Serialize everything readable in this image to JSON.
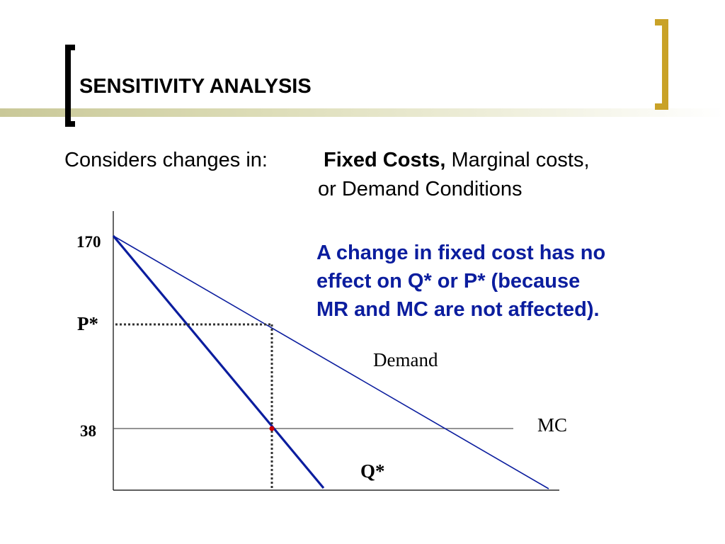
{
  "slide": {
    "title": "SENSITIVITY ANALYSIS",
    "subtitle_lead": "Considers changes in:",
    "subtitle_bold": "Fixed Costs,",
    "subtitle_rest": " Marginal costs,",
    "subtitle_line2": "or Demand Conditions",
    "accent_colors": {
      "title_band": "#c9c898",
      "right_bracket": "#c9a227",
      "left_bracket": "#000000"
    }
  },
  "note": {
    "lines": [
      "A change in fixed cost has no",
      "effect on Q* or P* (because",
      "MR and MC are not affected)."
    ],
    "color": "#0b1d9e"
  },
  "diagram": {
    "y_tick_170": "170",
    "y_tick_pstar": "P*",
    "y_tick_38": "38",
    "demand_label": "Demand",
    "mc_label": "MC",
    "qstar_label": "Q*",
    "colors": {
      "mr_line": "#0b1d9e",
      "demand_line": "#0b1d9e",
      "axes": "#000000",
      "mc_line": "#555555",
      "guide_lines": "#333333",
      "intersection_dot": "#cc0000"
    }
  }
}
